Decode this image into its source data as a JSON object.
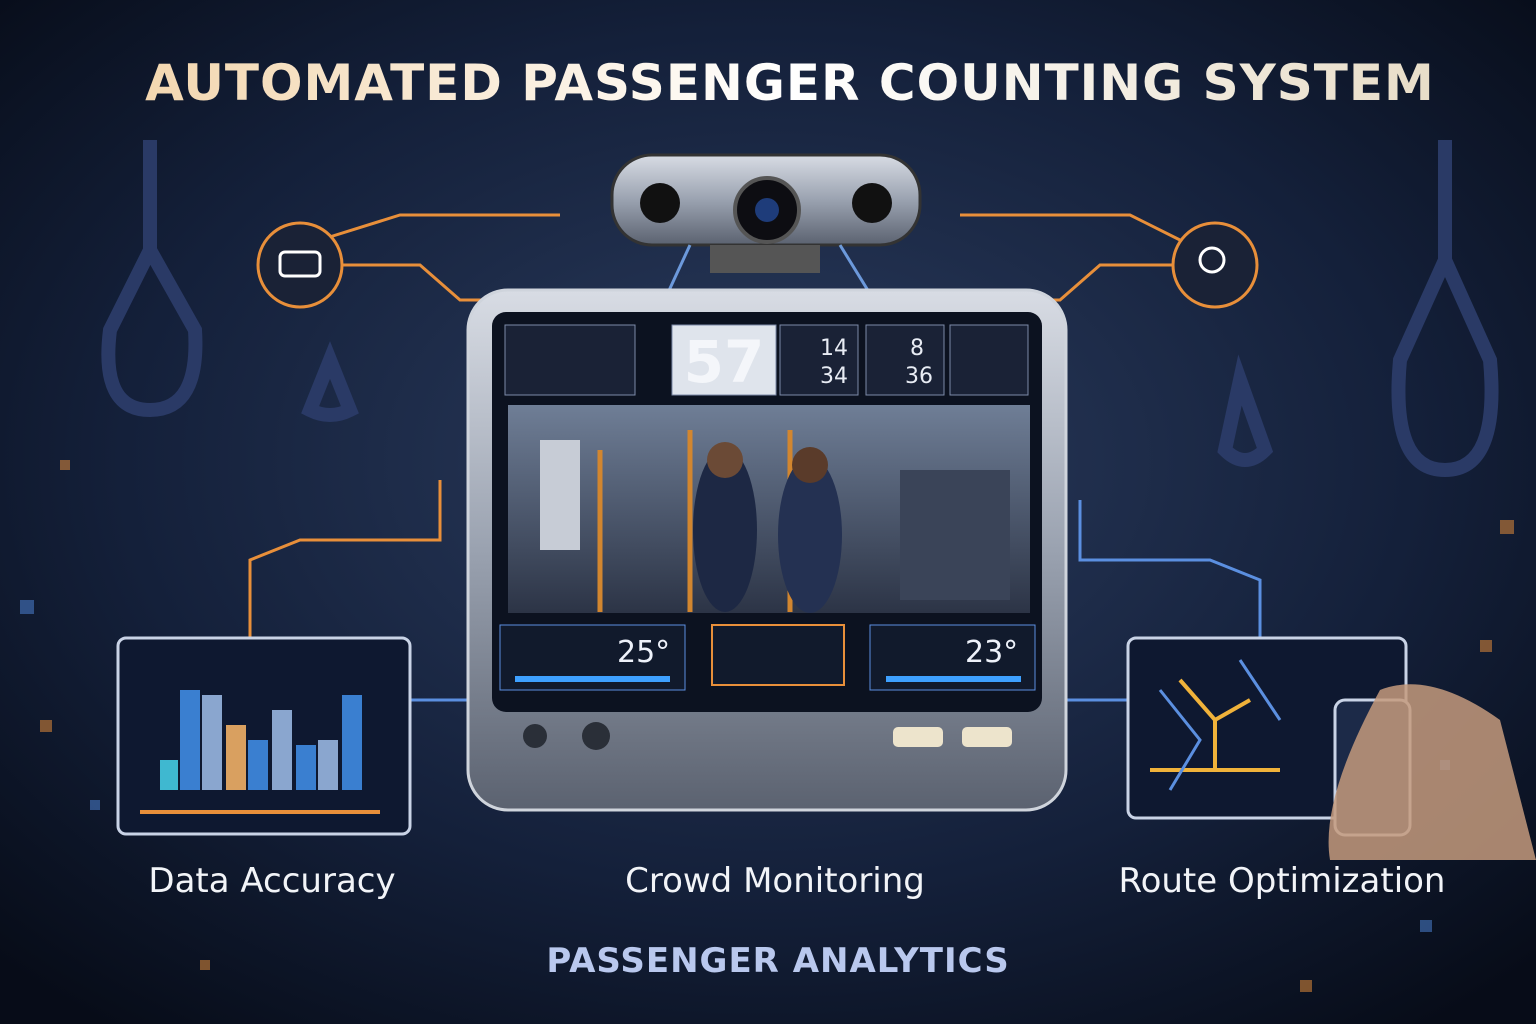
{
  "header": {
    "title": "AUTOMATED PASSENGER COUNTING SYSTEM"
  },
  "monitor": {
    "count": "57",
    "stats": [
      {
        "top": "14",
        "bottom": "34"
      },
      {
        "top": "8",
        "bottom": "36"
      }
    ],
    "readouts": [
      "25°",
      "23°"
    ]
  },
  "features": [
    "Data Accuracy",
    "Crowd Monitoring",
    "Route Optimization"
  ],
  "footer": {
    "subtitle": "PASSENGER ANALYTICS"
  }
}
